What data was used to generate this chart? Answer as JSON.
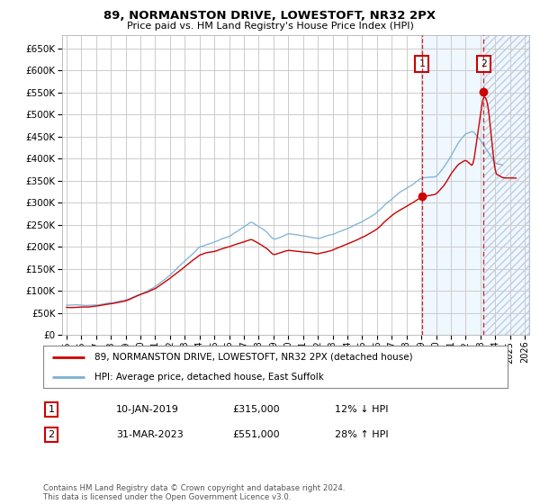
{
  "title": "89, NORMANSTON DRIVE, LOWESTOFT, NR32 2PX",
  "subtitle": "Price paid vs. HM Land Registry's House Price Index (HPI)",
  "ylim": [
    0,
    680000
  ],
  "yticks": [
    0,
    50000,
    100000,
    150000,
    200000,
    250000,
    300000,
    350000,
    400000,
    450000,
    500000,
    550000,
    600000,
    650000
  ],
  "xlim_start": 1994.7,
  "xlim_end": 2026.3,
  "background_color": "#ffffff",
  "grid_color": "#cccccc",
  "hpi_color": "#7bafd4",
  "price_color": "#cc0000",
  "sale1_date": 2019.04,
  "sale1_price": 315000,
  "sale1_label": "1",
  "sale2_date": 2023.21,
  "sale2_price": 551000,
  "sale2_label": "2",
  "shade_color": "#ddeeff",
  "hatch_color": "#c0cce0",
  "legend_line1": "89, NORMANSTON DRIVE, LOWESTOFT, NR32 2PX (detached house)",
  "legend_line2": "HPI: Average price, detached house, East Suffolk",
  "table_row1_num": "1",
  "table_row1_date": "10-JAN-2019",
  "table_row1_price": "£315,000",
  "table_row1_hpi": "12% ↓ HPI",
  "table_row2_num": "2",
  "table_row2_date": "31-MAR-2023",
  "table_row2_price": "£551,000",
  "table_row2_hpi": "28% ↑ HPI",
  "footnote": "Contains HM Land Registry data © Crown copyright and database right 2024.\nThis data is licensed under the Open Government Licence v3.0."
}
